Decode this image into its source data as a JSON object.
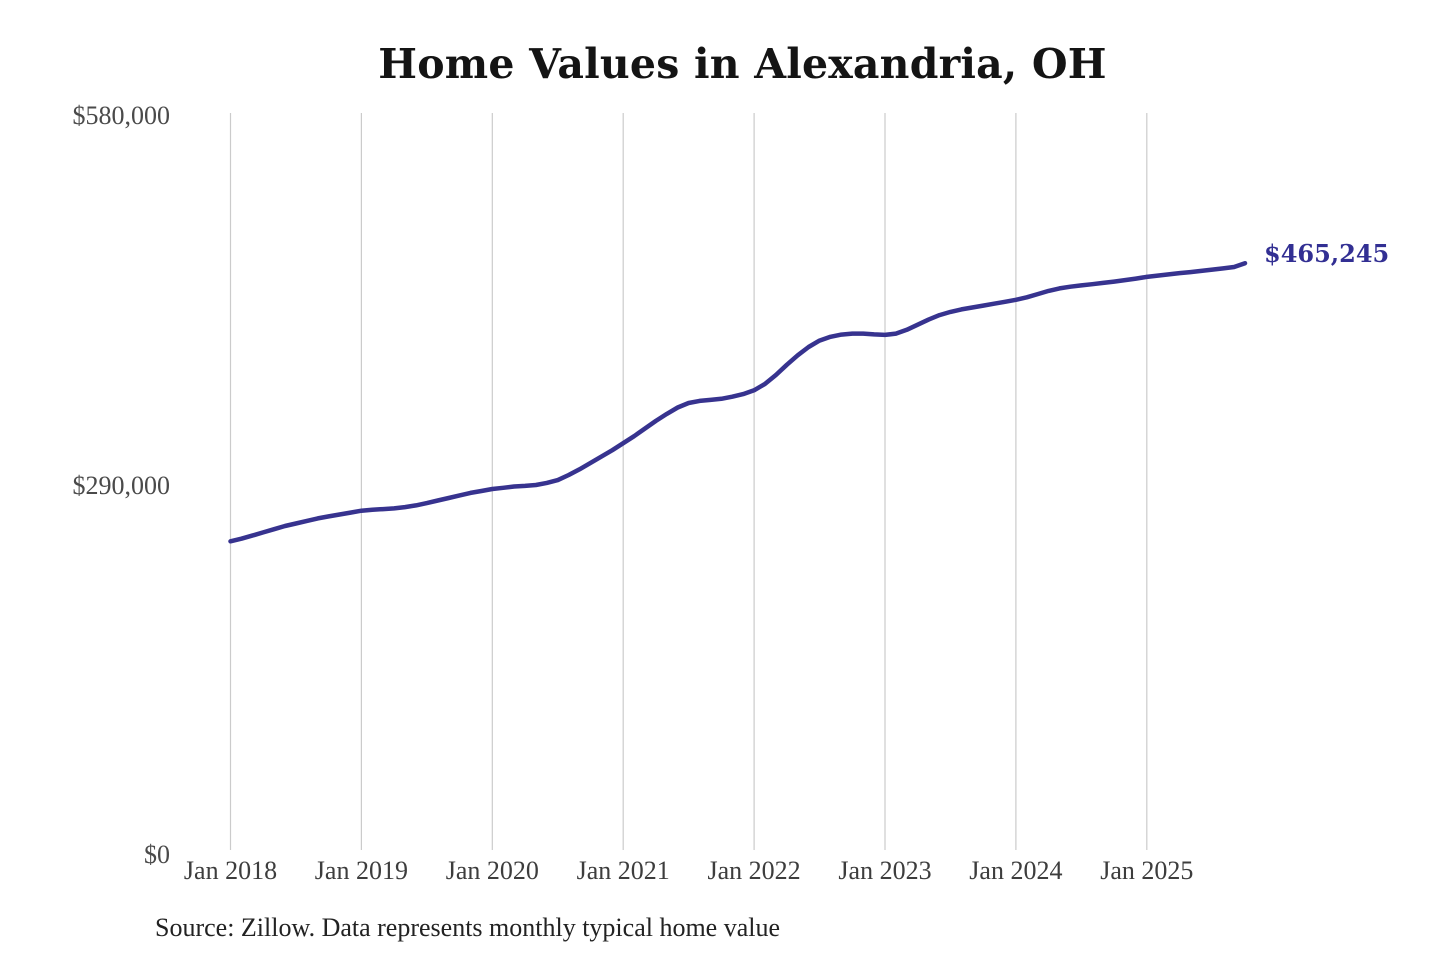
{
  "chart": {
    "title": "Home Values in Alexandria, OH",
    "source_note": "Source: Zillow. Data represents monthly typical home value",
    "latest_value_label": "$465,245"
  },
  "chart_data": {
    "type": "line",
    "title": "Home Values in Alexandria, OH",
    "x_axis": {
      "tick_labels": [
        "Jan 2018",
        "Jan 2019",
        "Jan 2020",
        "Jan 2021",
        "Jan 2022",
        "Jan 2023",
        "Jan 2024",
        "Jan 2025"
      ],
      "start_month": "2018-01",
      "end_month": "2025-10",
      "frequency": "monthly"
    },
    "y_axis": {
      "tick_labels": [
        "$580,000",
        "$290,000",
        "$0"
      ],
      "tick_values": [
        580000,
        290000,
        0
      ],
      "ylim": [
        0,
        580000
      ],
      "format": "USD"
    },
    "grid": "vertical-only",
    "legend": "none",
    "annotation": {
      "text": "$465,245",
      "value": 465245,
      "position": "end-of-line"
    },
    "source": "Source: Zillow. Data represents monthly typical home value",
    "series": [
      {
        "name": "Typical home value (monthly)",
        "color": "#37338f",
        "values": [
          247000,
          249000,
          251500,
          254000,
          256500,
          259000,
          261000,
          263000,
          265000,
          266500,
          268000,
          269500,
          271000,
          271800,
          272300,
          272800,
          273800,
          275200,
          277000,
          279000,
          281000,
          283000,
          285000,
          286500,
          288000,
          289000,
          290000,
          290500,
          291200,
          292800,
          295000,
          299000,
          303500,
          308500,
          313500,
          318500,
          324000,
          329500,
          335500,
          341500,
          347000,
          352000,
          355500,
          357200,
          358000,
          358800,
          360500,
          362500,
          365500,
          370500,
          377500,
          385500,
          393000,
          399500,
          404500,
          407500,
          409200,
          410000,
          410000,
          409400,
          409000,
          410000,
          413000,
          417000,
          421000,
          424500,
          427000,
          429000,
          430500,
          432000,
          433500,
          435000,
          436500,
          438500,
          441000,
          443500,
          445500,
          446800,
          447800,
          448800,
          449800,
          450800,
          452000,
          453200,
          454500,
          455500,
          456500,
          457500,
          458300,
          459200,
          460200,
          461200,
          462300,
          465245
        ]
      }
    ],
    "colors": {
      "line": "#37338f",
      "annotation": "#322f93",
      "gridline": "#cbcbcb",
      "y_tick": "#4a4a4a",
      "x_tick": "#3d3d3d",
      "title": "#141414",
      "source": "#222222",
      "background": "#ffffff"
    }
  }
}
